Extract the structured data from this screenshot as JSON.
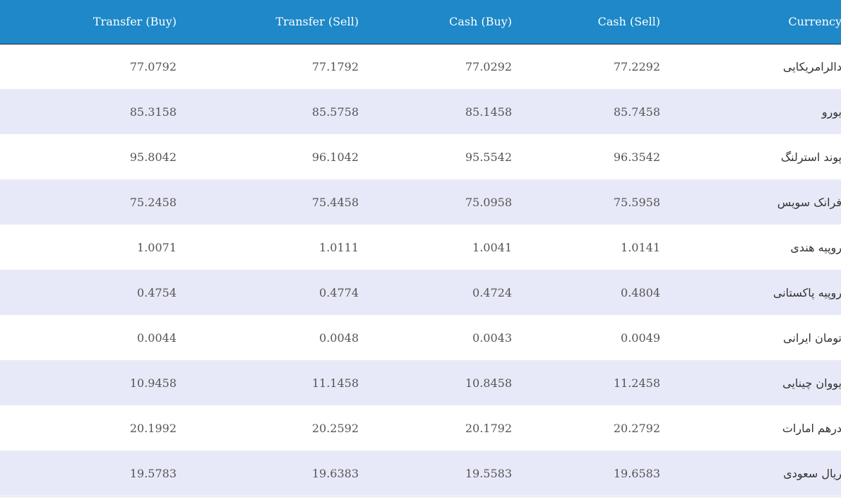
{
  "table": {
    "headers": {
      "transfer_buy": "Transfer (Buy)",
      "transfer_sell": "Transfer (Sell)",
      "cash_buy": "Cash (Buy)",
      "cash_sell": "Cash (Sell)",
      "currency": "Currency"
    },
    "rows": [
      {
        "currency": "دالرامریکایی",
        "cash_sell": "77.2292",
        "cash_buy": "77.0292",
        "transfer_sell": "77.1792",
        "transfer_buy": "77.0792"
      },
      {
        "currency": "یورو",
        "cash_sell": "85.7458",
        "cash_buy": "85.1458",
        "transfer_sell": "85.5758",
        "transfer_buy": "85.3158"
      },
      {
        "currency": "پوند استرلنگ",
        "cash_sell": "96.3542",
        "cash_buy": "95.5542",
        "transfer_sell": "96.1042",
        "transfer_buy": "95.8042"
      },
      {
        "currency": "فرانک سویس",
        "cash_sell": "75.5958",
        "cash_buy": "75.0958",
        "transfer_sell": "75.4458",
        "transfer_buy": "75.2458"
      },
      {
        "currency": "روپیه هندی",
        "cash_sell": "1.0141",
        "cash_buy": "1.0041",
        "transfer_sell": "1.0111",
        "transfer_buy": "1.0071"
      },
      {
        "currency": "روپیه پاکستانی",
        "cash_sell": "0.4804",
        "cash_buy": "0.4724",
        "transfer_sell": "0.4774",
        "transfer_buy": "0.4754"
      },
      {
        "currency": "تومان ایرانی",
        "cash_sell": "0.0049",
        "cash_buy": "0.0043",
        "transfer_sell": "0.0048",
        "transfer_buy": "0.0044"
      },
      {
        "currency": "یووان چینایی",
        "cash_sell": "11.2458",
        "cash_buy": "10.8458",
        "transfer_sell": "11.1458",
        "transfer_buy": "10.9458"
      },
      {
        "currency": "درهم امارات",
        "cash_sell": "20.2792",
        "cash_buy": "20.1792",
        "transfer_sell": "20.2592",
        "transfer_buy": "20.1992"
      },
      {
        "currency": "ریال سعودی",
        "cash_sell": "19.6583",
        "cash_buy": "19.5583",
        "transfer_sell": "19.6383",
        "transfer_buy": "19.5783"
      }
    ]
  },
  "colors": {
    "header_bg": "#1e88c8",
    "row_alt_bg": "#e8e9f8"
  }
}
